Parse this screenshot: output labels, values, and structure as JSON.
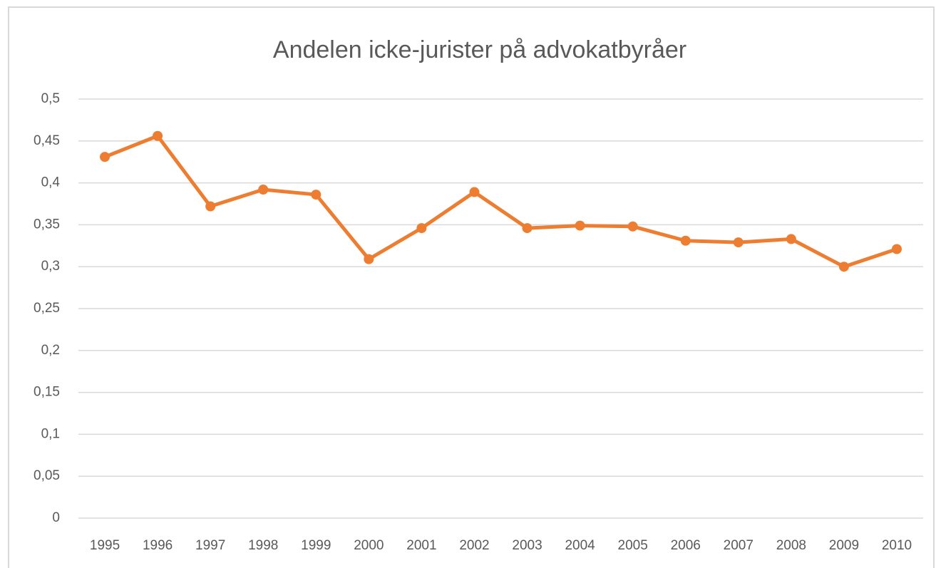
{
  "chart_data": {
    "type": "line",
    "title": "Andelen icke-jurister på advokatbyråer",
    "categories": [
      "1995",
      "1996",
      "1997",
      "1998",
      "1999",
      "2000",
      "2001",
      "2002",
      "2003",
      "2004",
      "2005",
      "2006",
      "2007",
      "2008",
      "2009",
      "2010"
    ],
    "series": [
      {
        "color": "#ed7d31",
        "values": [
          0.431,
          0.456,
          0.372,
          0.392,
          0.386,
          0.309,
          0.346,
          0.389,
          0.346,
          0.349,
          0.348,
          0.331,
          0.329,
          0.333,
          0.3,
          0.321
        ]
      }
    ],
    "ylim": [
      0,
      0.5
    ],
    "yticks": [
      0,
      {
        "value": 0.05,
        "label": "0,05"
      },
      {
        "value": 0.1,
        "label": "0,1"
      },
      {
        "value": 0.15,
        "label": "0,15"
      },
      {
        "value": 0.2,
        "label": "0,2"
      },
      {
        "value": 0.25,
        "label": "0,25"
      },
      {
        "value": 0.3,
        "label": "0,3"
      },
      {
        "value": 0.35,
        "label": "0,35"
      },
      {
        "value": 0.4,
        "label": "0,4"
      },
      {
        "value": 0.45,
        "label": "0,45"
      },
      {
        "value": 0.5,
        "label": "0,5"
      }
    ],
    "grid": true
  }
}
